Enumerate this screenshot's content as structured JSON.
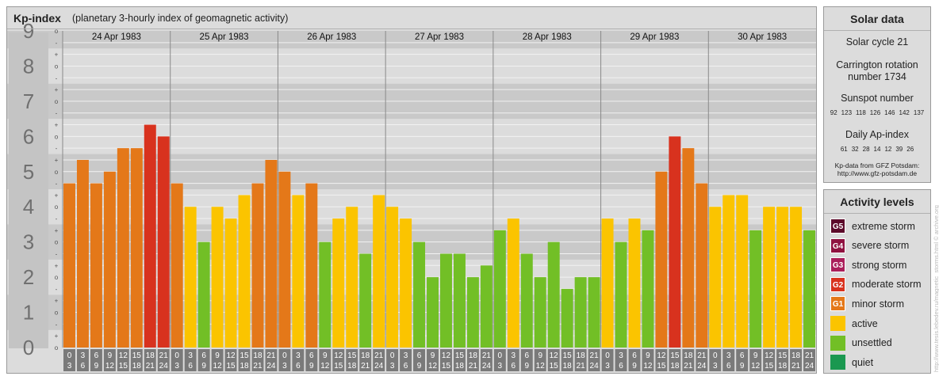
{
  "header": {
    "title": "Kp-index",
    "subtitle": "(planetary 3-hourly index of geomagnetic activity)"
  },
  "chart_data": {
    "type": "bar",
    "y_major_labels": [
      "0",
      "1",
      "2",
      "3",
      "4",
      "5",
      "6",
      "7",
      "8",
      "9"
    ],
    "y_minor_labels": [
      "o",
      "+",
      "-",
      "o"
    ],
    "ylim": [
      0,
      9
    ],
    "days": [
      "24 Apr 1983",
      "25 Apr 1983",
      "26 Apr 1983",
      "27 Apr 1983",
      "28 Apr 1983",
      "29 Apr 1983",
      "30 Apr 1983"
    ],
    "interval_start_labels": [
      "0",
      "3",
      "6",
      "9",
      "12",
      "15",
      "18",
      "21"
    ],
    "interval_end_labels": [
      "3",
      "6",
      "9",
      "12",
      "15",
      "18",
      "21",
      "24"
    ],
    "values": [
      [
        4.667,
        5.333,
        4.667,
        5.0,
        5.667,
        5.667,
        6.333,
        6.0
      ],
      [
        4.667,
        4.0,
        3.0,
        4.0,
        3.667,
        4.333,
        4.667,
        5.333
      ],
      [
        5.0,
        4.333,
        4.667,
        3.0,
        3.667,
        4.0,
        2.667,
        4.333
      ],
      [
        4.0,
        3.667,
        3.0,
        2.0,
        2.667,
        2.667,
        2.0,
        2.333
      ],
      [
        3.333,
        3.667,
        2.667,
        2.0,
        3.0,
        1.667,
        2.0,
        2.0
      ],
      [
        3.667,
        3.0,
        3.667,
        3.333,
        5.0,
        6.0,
        5.667,
        4.667
      ],
      [
        4.0,
        4.333,
        4.333,
        3.333,
        4.0,
        4.0,
        4.0,
        3.333
      ]
    ],
    "level_colors": {
      "quiet": "#1a9850",
      "unsettled": "#72bf26",
      "active": "#fbc400",
      "minor_storm": "#e47819",
      "moderate_storm": "#d8321e",
      "strong_storm": "#aa1f5a",
      "severe_storm": "#8f1240",
      "extreme_storm": "#5c0a2a"
    },
    "background_colors": {
      "band_dark": "#c9c9c9",
      "band_light": "#dcdcdc",
      "axis_label_bg": "#c4c4c4",
      "axis_label_text": "#707070",
      "time_cell_bg": "#7a7a7a"
    }
  },
  "solar_data": {
    "title": "Solar data",
    "solar_cycle": "Solar cycle 21",
    "carrington_line1": "Carrington rotation",
    "carrington_line2": "number 1734",
    "sunspot_title": "Sunspot number",
    "sunspot_values": [
      "92",
      "123",
      "118",
      "126",
      "146",
      "142",
      "137"
    ],
    "ap_title": "Daily Ap-index",
    "ap_values": [
      "61",
      "32",
      "28",
      "14",
      "12",
      "39",
      "26"
    ],
    "source_line1": "Kp-data from GFZ Potsdam:",
    "source_line2": "http://www.gfz-potsdam.de"
  },
  "activity_levels": {
    "title": "Activity levels",
    "items": [
      {
        "code": "G5",
        "label": "extreme storm",
        "color": "#5c0a2a"
      },
      {
        "code": "G4",
        "label": "severe storm",
        "color": "#8f1240"
      },
      {
        "code": "G3",
        "label": "strong storm",
        "color": "#aa1f5a"
      },
      {
        "code": "G2",
        "label": "moderate storm",
        "color": "#d8321e"
      },
      {
        "code": "G1",
        "label": "minor storm",
        "color": "#e47819"
      },
      {
        "code": "",
        "label": "active",
        "color": "#fbc400"
      },
      {
        "code": "",
        "label": "unsettled",
        "color": "#72bf26"
      },
      {
        "code": "",
        "label": "quiet",
        "color": "#1a9850"
      }
    ]
  },
  "watermark": "http://www.tesis.lebedev.ru/magnetic_storms.html  © archive.org"
}
